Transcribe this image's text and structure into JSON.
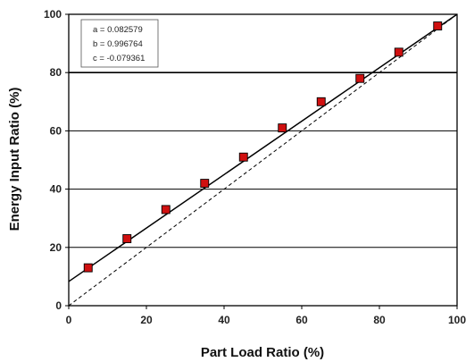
{
  "chart_data": {
    "type": "scatter",
    "xlabel": "Part Load Ratio (%)",
    "ylabel": "Energy Input Ratio (%)",
    "xlim": [
      0,
      100
    ],
    "ylim": [
      0,
      100
    ],
    "xticks": [
      0,
      20,
      40,
      60,
      80,
      100
    ],
    "yticks": [
      0,
      20,
      40,
      60,
      80,
      100
    ],
    "grid": "horizontal",
    "series": [
      {
        "kind": "markers",
        "marker": "square",
        "color": "#d01010",
        "x": [
          5,
          15,
          25,
          35,
          45,
          55,
          65,
          75,
          85,
          95
        ],
        "y": [
          13,
          23,
          33,
          42,
          51,
          61,
          70,
          78,
          87,
          96
        ]
      },
      {
        "kind": "fit-line",
        "style": "solid",
        "color": "#000000",
        "x": [
          0,
          100
        ],
        "y": [
          8.3,
          100
        ]
      },
      {
        "kind": "reference-line",
        "style": "dashed",
        "color": "#000000",
        "x": [
          0,
          100
        ],
        "y": [
          0,
          100
        ]
      }
    ],
    "annotations": [
      "a = 0.082579",
      "b = 0.996764",
      "c = -0.079361"
    ],
    "annotation_placement": "top-left"
  }
}
